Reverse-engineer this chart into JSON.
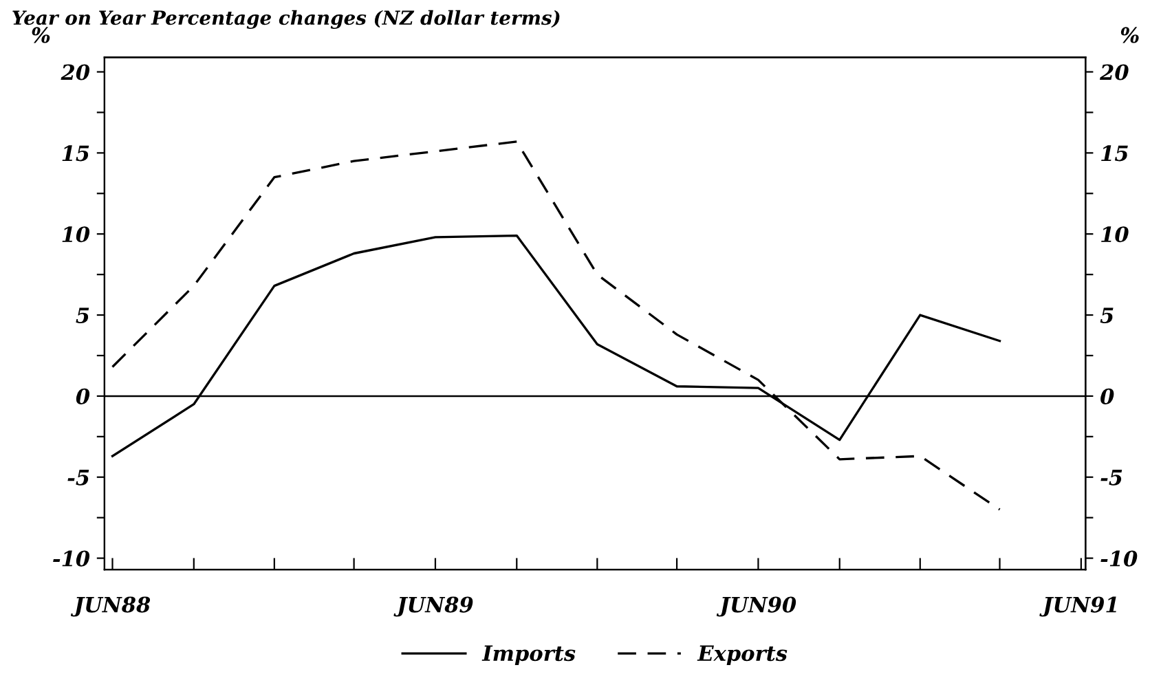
{
  "chart_data": {
    "type": "line",
    "title": "Year on Year Percentage changes (NZ dollar terms)",
    "ylabel": "%",
    "y2label": "%",
    "x": [
      "1988-06",
      "1988-09",
      "1988-12",
      "1989-03",
      "1989-06",
      "1989-09",
      "1989-12",
      "1990-03",
      "1990-06",
      "1990-09",
      "1990-12",
      "1991-03"
    ],
    "series": [
      {
        "name": "Imports",
        "color": "#000000",
        "line_style": "solid",
        "values": [
          -3.7,
          -0.5,
          6.8,
          8.8,
          9.8,
          9.9,
          3.2,
          0.6,
          0.5,
          -2.7,
          5.0,
          3.4
        ]
      },
      {
        "name": "Exports",
        "color": "#000000",
        "line_style": "dashed",
        "values": [
          1.8,
          6.8,
          13.5,
          14.5,
          15.1,
          15.7,
          7.5,
          3.8,
          1.0,
          -3.9,
          -3.7,
          -7.0
        ]
      }
    ],
    "xlim": [
      "1988-05-23",
      "1991-06-06"
    ],
    "xticks": [
      {
        "value": "1988-06",
        "label": "JUN88"
      },
      {
        "value": "1988-09",
        "label": null
      },
      {
        "value": "1988-12",
        "label": null
      },
      {
        "value": "1989-03",
        "label": null
      },
      {
        "value": "1989-06",
        "label": "JUN89"
      },
      {
        "value": "1989-09",
        "label": null
      },
      {
        "value": "1989-12",
        "label": null
      },
      {
        "value": "1990-03",
        "label": null
      },
      {
        "value": "1990-06",
        "label": "JUN90"
      },
      {
        "value": "1990-09",
        "label": null
      },
      {
        "value": "1990-12",
        "label": null
      },
      {
        "value": "1991-03",
        "label": null
      },
      {
        "value": "1991-06",
        "label": "JUN91"
      }
    ],
    "ylim": [
      -10.7,
      20.9
    ],
    "yticks": [
      -10,
      {
        "value": -7.5,
        "label": null
      },
      -5,
      {
        "value": -2.5,
        "label": null
      },
      0,
      {
        "value": 2.5,
        "label": null
      },
      5,
      {
        "value": 7.5,
        "label": null
      },
      10,
      {
        "value": 12.5,
        "label": null
      },
      15,
      {
        "value": 17.5,
        "label": null
      },
      20
    ],
    "y2lim": [
      -10.7,
      20.9
    ],
    "y2ticks": [
      -10,
      {
        "value": -7.5,
        "label": null
      },
      -5,
      {
        "value": -2.5,
        "label": null
      },
      0,
      {
        "value": 2.5,
        "label": null
      },
      5,
      {
        "value": 7.5,
        "label": null
      },
      10,
      {
        "value": 12.5,
        "label": null
      },
      15,
      {
        "value": 17.5,
        "label": null
      },
      20
    ],
    "ref_lines": [
      {
        "axis": "y",
        "value": 0,
        "color": "#000000",
        "line_style": "solid"
      }
    ],
    "grid": false,
    "legend": "bottom",
    "marker": "none"
  }
}
